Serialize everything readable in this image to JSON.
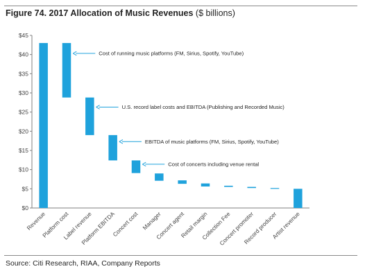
{
  "title_bold": "Figure 74. 2017 Allocation of Music Revenues",
  "title_units": " ($ billions)",
  "source": "Source: Citi Research, RIAA, Company Reports",
  "chart_data": {
    "type": "waterfall",
    "title": "Figure 74. 2017 Allocation of Music Revenues ($ billions)",
    "ylabel": "",
    "ylim": [
      0,
      45
    ],
    "ytick_step": 5,
    "ytick_format": "$",
    "grid": false,
    "legend": "none",
    "bar_color": "#1fa2dc",
    "categories": [
      "Revenue",
      "Platform cost",
      "Label revenue",
      "Platform EBITDA",
      "Concert cost",
      "Manager",
      "Concert agent",
      "Retail margin",
      "Collection  Fee",
      "Concert promoter",
      "Record producer",
      "Artist revenue"
    ],
    "bars": [
      {
        "category": "Revenue",
        "start": 0,
        "end": 43
      },
      {
        "category": "Platform cost",
        "start": 28.8,
        "end": 43
      },
      {
        "category": "Label revenue",
        "start": 19.0,
        "end": 28.8
      },
      {
        "category": "Platform EBITDA",
        "start": 12.4,
        "end": 19.0
      },
      {
        "category": "Concert cost",
        "start": 9.1,
        "end": 12.4
      },
      {
        "category": "Manager",
        "start": 7.1,
        "end": 9.0
      },
      {
        "category": "Concert agent",
        "start": 6.3,
        "end": 7.2
      },
      {
        "category": "Retail margin",
        "start": 5.6,
        "end": 6.4
      },
      {
        "category": "Collection  Fee",
        "start": 5.5,
        "end": 5.8
      },
      {
        "category": "Concert promoter",
        "start": 5.2,
        "end": 5.5
      },
      {
        "category": "Record producer",
        "start": 5.0,
        "end": 5.2
      },
      {
        "category": "Artist revenue",
        "start": 0,
        "end": 5.0
      }
    ],
    "annotations": [
      {
        "target": "Platform cost",
        "text": "Cost of running  music platforms (FM, Sirius, Spotify, YouTube)",
        "y": 40.3
      },
      {
        "target": "Label revenue",
        "text": "U.S. record label costs and EBITDA (Publishing and Recorded Music)",
        "y": 26.3
      },
      {
        "target": "Platform EBITDA",
        "text": "EBITDA of music platforms (FM, Sirius, Spotify, YouTube)",
        "y": 17.3
      },
      {
        "target": "Concert cost",
        "text": "Cost of concerts including venue rental",
        "y": 11.4
      }
    ]
  }
}
